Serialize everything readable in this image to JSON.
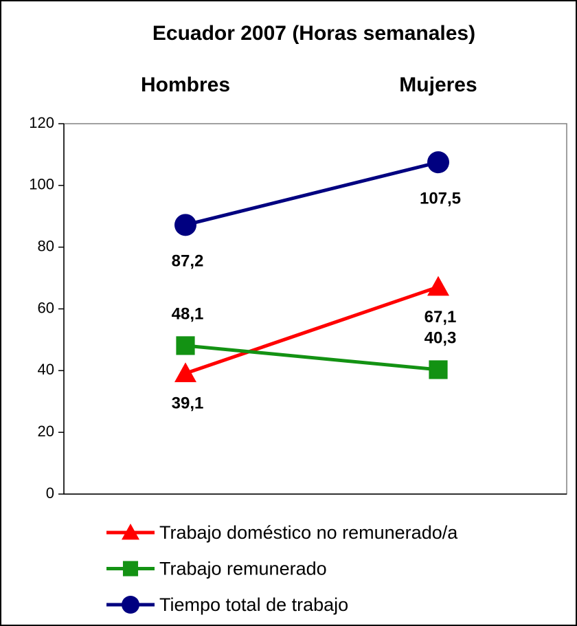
{
  "chart_data": {
    "type": "line",
    "title": "Ecuador 2007 (Horas semanales)",
    "categories": [
      "Hombres",
      "Mujeres"
    ],
    "series": [
      {
        "name": "Trabajo doméstico no remunerado/a",
        "color": "#ff0000",
        "marker": "triangle",
        "values": [
          39.1,
          67.1
        ],
        "value_labels": [
          "39,1",
          "67,1"
        ]
      },
      {
        "name": "Trabajo remunerado",
        "color": "#139213",
        "marker": "square",
        "values": [
          48.1,
          40.3
        ],
        "value_labels": [
          "48,1",
          "40,3"
        ]
      },
      {
        "name": "Tiempo total de trabajo",
        "color": "#000080",
        "marker": "circle",
        "values": [
          87.2,
          107.5
        ],
        "value_labels": [
          "87,2",
          "107,5"
        ]
      }
    ],
    "ylim": [
      0,
      120
    ],
    "yticks": [
      0,
      20,
      40,
      60,
      80,
      100,
      120
    ],
    "grid": false,
    "legend": "bottom"
  }
}
